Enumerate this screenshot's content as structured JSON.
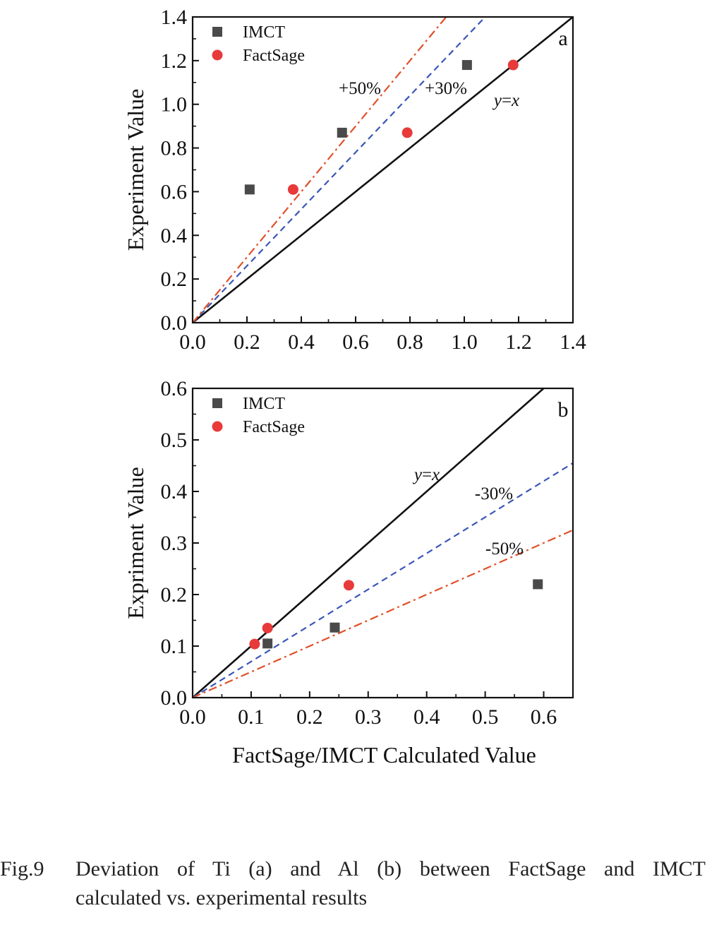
{
  "chart_data": [
    {
      "type": "scatter",
      "panel_label": "a",
      "ylabel": "Experiment Value",
      "xlabel": "",
      "xlim": [
        0,
        1.4
      ],
      "ylim": [
        0,
        1.4
      ],
      "x_ticks": [
        "0.0",
        "0.2",
        "0.4",
        "0.6",
        "0.8",
        "1.0",
        "1.2",
        "1.4"
      ],
      "y_ticks": [
        "0.0",
        "0.2",
        "0.4",
        "0.6",
        "0.8",
        "1.0",
        "1.2",
        "1.4"
      ],
      "legend_position": "top-left",
      "series": [
        {
          "name": "IMCT",
          "marker": "square",
          "color": "#4a4a4a",
          "points": [
            [
              0.21,
              0.61
            ],
            [
              0.55,
              0.87
            ],
            [
              1.01,
              1.18
            ]
          ]
        },
        {
          "name": "FactSage",
          "marker": "circle",
          "color": "#e83a3a",
          "points": [
            [
              0.37,
              0.61
            ],
            [
              0.79,
              0.87
            ],
            [
              1.18,
              1.18
            ]
          ]
        }
      ],
      "reference_lines": [
        {
          "label": "y=x",
          "slope": 1.0,
          "style": "solid",
          "color": "#111111"
        },
        {
          "label": "+30%",
          "slope": 1.3,
          "style": "dash",
          "color": "#3a56b8"
        },
        {
          "label": "+50%",
          "slope": 1.5,
          "style": "dashdot",
          "color": "#e0502a"
        }
      ]
    },
    {
      "type": "scatter",
      "panel_label": "b",
      "ylabel": "Expriment Value",
      "xlabel": "FactSage/IMCT Calculated Value",
      "xlim": [
        0,
        0.65
      ],
      "ylim": [
        0,
        0.6
      ],
      "x_ticks": [
        "0.0",
        "0.1",
        "0.2",
        "0.3",
        "0.4",
        "0.5",
        "0.6"
      ],
      "y_ticks": [
        "0.0",
        "0.1",
        "0.2",
        "0.3",
        "0.4",
        "0.5",
        "0.6"
      ],
      "legend_position": "top-left",
      "series": [
        {
          "name": "IMCT",
          "marker": "square",
          "color": "#4a4a4a",
          "points": [
            [
              0.128,
              0.105
            ],
            [
              0.243,
              0.136
            ],
            [
              0.59,
              0.22
            ]
          ]
        },
        {
          "name": "FactSage",
          "marker": "circle",
          "color": "#e83a3a",
          "points": [
            [
              0.106,
              0.104
            ],
            [
              0.128,
              0.135
            ],
            [
              0.267,
              0.218
            ]
          ]
        }
      ],
      "reference_lines": [
        {
          "label": "y=x",
          "slope": 1.0,
          "style": "solid",
          "color": "#111111"
        },
        {
          "label": "-30%",
          "slope": 0.7,
          "style": "dash",
          "color": "#3a56b8"
        },
        {
          "label": "-50%",
          "slope": 0.5,
          "style": "dashdot",
          "color": "#e0502a"
        }
      ]
    }
  ],
  "caption": {
    "number": "Fig.9",
    "line1": "Deviation of Ti (a) and Al (b) between FactSage and IMCT",
    "line2": "calculated vs. experimental results"
  }
}
